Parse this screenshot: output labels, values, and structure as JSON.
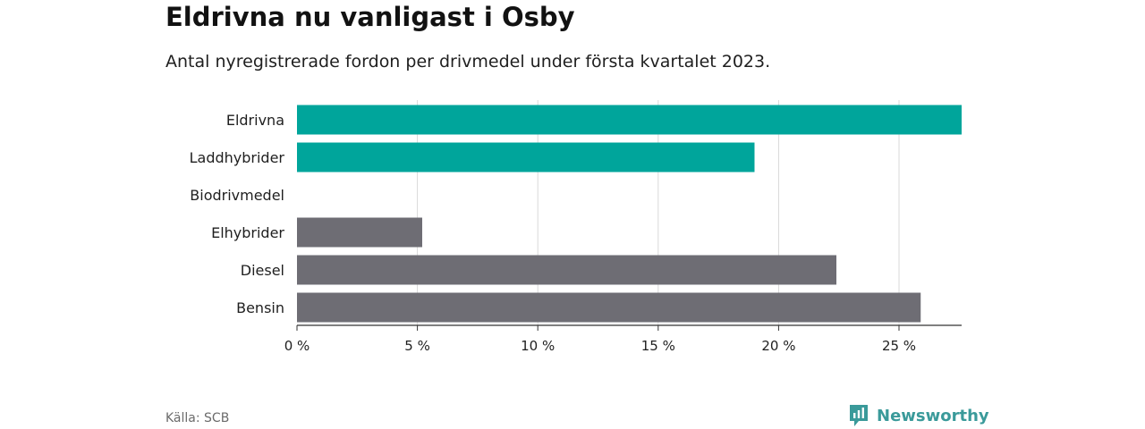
{
  "title": "Eldrivna nu vanligast i Osby",
  "subtitle": "Antal nyregistrerade fordon per drivmedel under första kvartalet 2023.",
  "source": "Källa: SCB",
  "brand": {
    "name": "Newsworthy",
    "icon": "newsworthy-logo-icon",
    "color": "#3a9a9a"
  },
  "chart_data": {
    "type": "bar",
    "orientation": "horizontal",
    "categories": [
      "Eldrivna",
      "Laddhybrider",
      "Biodrivmedel",
      "Elhybrider",
      "Diesel",
      "Bensin"
    ],
    "values": [
      27.6,
      19.0,
      0,
      5.2,
      22.4,
      25.9
    ],
    "colors": [
      "#00a59b",
      "#00a59b",
      "#00a59b",
      "#6e6d74",
      "#6e6d74",
      "#6e6d74"
    ],
    "xlim": [
      0,
      27.6
    ],
    "xticks": [
      0,
      5,
      10,
      15,
      20,
      25
    ],
    "xtick_labels": [
      "0 %",
      "5 %",
      "10 %",
      "15 %",
      "20 %",
      "25 %"
    ],
    "xlabel": "",
    "ylabel": "",
    "grid": "vertical"
  }
}
